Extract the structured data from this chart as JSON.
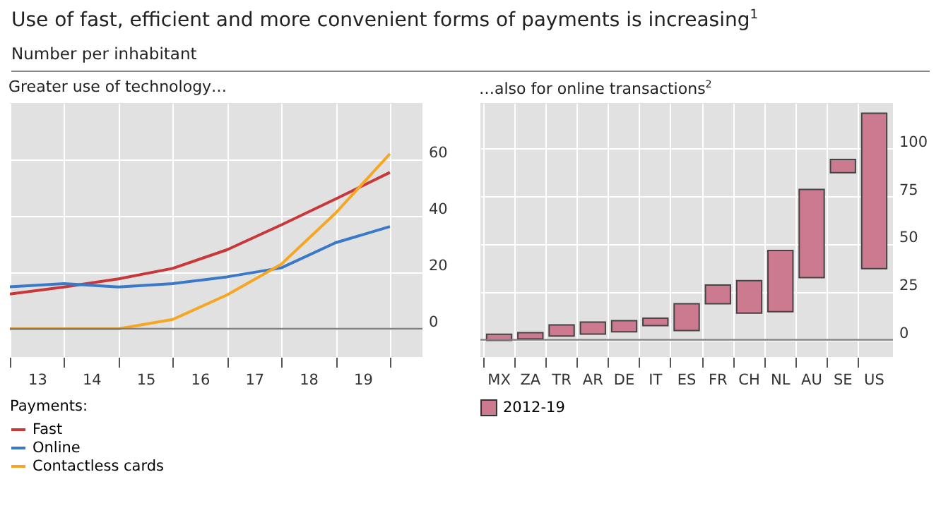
{
  "chart_data": [
    {
      "type": "line",
      "title": "Use of fast, efficient and more convenient forms of payments is increasing$^{1}$",
      "subtitle": "Number per inhabitant",
      "annotations": [
        "Greater use of technology…"
      ],
      "x": [
        12.5,
        13.5,
        14.5,
        15.5,
        16.5,
        17.5,
        18.5,
        19.5
      ],
      "xlim": [
        12.5,
        20.1
      ],
      "xticks": [
        {
          "value": 12.5,
          "label": null
        },
        13,
        {
          "value": 13.5,
          "label": null
        },
        14,
        {
          "value": 14.5,
          "label": null
        },
        15,
        {
          "value": 15.5,
          "label": null
        },
        16,
        {
          "value": 16.5,
          "label": null
        },
        17,
        {
          "value": 17.5,
          "label": null
        },
        18,
        {
          "value": 18.5,
          "label": null
        },
        19,
        {
          "value": 19.5,
          "label": null
        }
      ],
      "ylim": [
        -10,
        80
      ],
      "yticks": [
        0,
        20,
        40,
        60
      ],
      "grid": true,
      "legend": "bottom",
      "legend_title": "Payments:",
      "ref_lines": [
        {
          "axis": "y",
          "value": 0,
          "color": "#7f7f7f"
        }
      ],
      "series": [
        {
          "name": "Fast",
          "color": "#c8373a",
          "values": [
            12.3,
            14.8,
            17.7,
            21.4,
            28,
            36.8,
            46,
            55.4
          ]
        },
        {
          "name": "Online",
          "color": "#3a78c9",
          "values": [
            14.9,
            16,
            14.8,
            16,
            18.4,
            21.6,
            30.5,
            36.2
          ]
        },
        {
          "name": "Contactless cards",
          "color": "#f5a623",
          "values": [
            0,
            0,
            0,
            3.3,
            12,
            22.9,
            41,
            62
          ]
        }
      ]
    },
    {
      "type": "bar",
      "title": "…also for online transactions$^{2}$",
      "categories": [
        "MX",
        "ZA",
        "TR",
        "AR",
        "DE",
        "IT",
        "ES",
        "FR",
        "CH",
        "NL",
        "AU",
        "SE",
        "US"
      ],
      "ylim": [
        -9,
        124
      ],
      "yticks": [
        0,
        25,
        50,
        75,
        100
      ],
      "grid": true,
      "legend": "bottom",
      "ref_lines": [
        {
          "axis": "y",
          "value": 0,
          "color": "#7f7f7f"
        }
      ],
      "series": [
        {
          "name": "2012-19",
          "color": "#cc7a8f",
          "base": [
            -0.3,
            0.5,
            2,
            3,
            4.2,
            7.4,
            4.9,
            18.9,
            14,
            14.7,
            32.6,
            87.5,
            37.3
          ],
          "values": [
            3.2,
            3.2,
            5.8,
            6.3,
            5.8,
            3.9,
            14,
            9.8,
            17,
            32.1,
            46.1,
            6.9,
            81.3
          ]
        }
      ]
    }
  ]
}
